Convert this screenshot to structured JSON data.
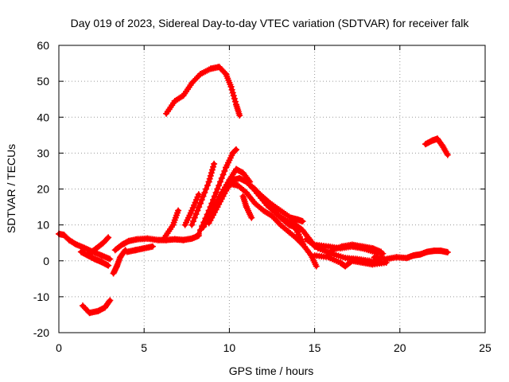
{
  "chart_data": {
    "type": "scatter",
    "title": "Day 019 of 2023, Sidereal Day-to-day VTEC variation (SDTVAR) for receiver falk",
    "xlabel": "GPS time / hours",
    "ylabel": "SDTVAR / TECUs",
    "xlim": [
      0,
      25
    ],
    "ylim": [
      -20,
      60
    ],
    "xticks": [
      0,
      5,
      10,
      15,
      20,
      25
    ],
    "yticks": [
      -20,
      -10,
      0,
      10,
      20,
      30,
      40,
      50,
      60
    ],
    "grid": true,
    "marker": "plus",
    "series_color": "#ff0000",
    "tracks": [
      {
        "name": "track-morning-baseline",
        "points": [
          [
            0.0,
            7.5
          ],
          [
            0.3,
            7.2
          ],
          [
            0.6,
            5.8
          ],
          [
            1.0,
            4.6
          ],
          [
            1.5,
            3.6
          ],
          [
            2.0,
            2.5
          ],
          [
            2.5,
            1.5
          ],
          [
            3.0,
            0.5
          ]
        ]
      },
      {
        "name": "track-morning-low",
        "points": [
          [
            1.3,
            2.5
          ],
          [
            1.7,
            1.5
          ],
          [
            2.1,
            0.5
          ],
          [
            2.5,
            -0.3
          ],
          [
            2.9,
            -1.3
          ]
        ]
      },
      {
        "name": "track-morning-rise",
        "points": [
          [
            1.8,
            2.0
          ],
          [
            2.2,
            3.5
          ],
          [
            2.6,
            5.0
          ],
          [
            2.9,
            6.5
          ]
        ]
      },
      {
        "name": "track-negative-low",
        "points": [
          [
            1.4,
            -12.5
          ],
          [
            1.8,
            -14.5
          ],
          [
            2.3,
            -14.0
          ],
          [
            2.7,
            -13.0
          ],
          [
            3.0,
            -11.0
          ]
        ]
      },
      {
        "name": "track-dip",
        "points": [
          [
            3.2,
            -3.5
          ],
          [
            3.4,
            -1.5
          ],
          [
            3.6,
            1.0
          ],
          [
            3.9,
            3.0
          ]
        ]
      },
      {
        "name": "track-mid-a",
        "points": [
          [
            3.3,
            3.0
          ],
          [
            3.7,
            4.5
          ],
          [
            4.1,
            5.5
          ],
          [
            4.6,
            6.0
          ],
          [
            5.2,
            6.2
          ],
          [
            5.8,
            5.8
          ],
          [
            6.3,
            5.8
          ],
          [
            6.8,
            6.0
          ],
          [
            7.3,
            5.8
          ],
          [
            7.8,
            6.2
          ],
          [
            8.2,
            7.0
          ]
        ]
      },
      {
        "name": "track-mid-b",
        "points": [
          [
            4.0,
            2.5
          ],
          [
            4.5,
            3.0
          ],
          [
            5.0,
            3.5
          ],
          [
            5.5,
            4.0
          ]
        ]
      },
      {
        "name": "track-rise-a",
        "points": [
          [
            6.2,
            6.5
          ],
          [
            6.7,
            10.0
          ],
          [
            7.0,
            14.0
          ]
        ]
      },
      {
        "name": "track-rise-b",
        "points": [
          [
            7.4,
            10.0
          ],
          [
            7.8,
            14.0
          ],
          [
            8.2,
            18.5
          ]
        ]
      },
      {
        "name": "track-rise-c",
        "points": [
          [
            7.8,
            10.0
          ],
          [
            8.3,
            16.0
          ],
          [
            8.8,
            22.0
          ],
          [
            9.1,
            27.0
          ]
        ]
      },
      {
        "name": "track-rise-d",
        "points": [
          [
            8.2,
            7.5
          ],
          [
            8.8,
            14.0
          ],
          [
            9.3,
            20.0
          ],
          [
            9.8,
            26.0
          ],
          [
            10.2,
            30.0
          ],
          [
            10.4,
            31.0
          ]
        ]
      },
      {
        "name": "track-rise-e",
        "points": [
          [
            8.5,
            9.5
          ],
          [
            9.0,
            14.0
          ],
          [
            9.5,
            18.5
          ],
          [
            10.0,
            22.5
          ],
          [
            10.4,
            25.5
          ],
          [
            10.8,
            24.5
          ],
          [
            11.2,
            22.0
          ]
        ]
      },
      {
        "name": "track-rise-f",
        "points": [
          [
            8.8,
            10.5
          ],
          [
            9.3,
            15.0
          ],
          [
            9.8,
            19.5
          ],
          [
            10.2,
            22.5
          ],
          [
            10.6,
            23.0
          ],
          [
            11.0,
            22.0
          ],
          [
            11.5,
            20.0
          ],
          [
            12.0,
            17.0
          ],
          [
            12.5,
            14.5
          ],
          [
            13.0,
            12.0
          ],
          [
            13.5,
            10.0
          ],
          [
            14.0,
            9.0
          ]
        ]
      },
      {
        "name": "track-peak-high",
        "points": [
          [
            6.3,
            41.0
          ],
          [
            6.8,
            44.5
          ],
          [
            7.3,
            46.0
          ],
          [
            7.8,
            49.5
          ],
          [
            8.3,
            52.0
          ],
          [
            8.9,
            53.5
          ],
          [
            9.4,
            54.0
          ],
          [
            9.8,
            52.0
          ],
          [
            10.1,
            48.5
          ],
          [
            10.4,
            43.5
          ],
          [
            10.6,
            40.5
          ]
        ]
      },
      {
        "name": "track-decline-a",
        "points": [
          [
            10.0,
            21.5
          ],
          [
            10.5,
            21.0
          ],
          [
            11.0,
            19.0
          ],
          [
            11.5,
            16.0
          ],
          [
            12.0,
            14.0
          ],
          [
            12.5,
            12.5
          ],
          [
            13.0,
            10.0
          ],
          [
            13.5,
            8.0
          ],
          [
            14.0,
            6.0
          ],
          [
            14.3,
            4.5
          ]
        ]
      },
      {
        "name": "track-decline-b",
        "points": [
          [
            10.8,
            18.0
          ],
          [
            11.0,
            15.0
          ],
          [
            11.3,
            12.0
          ]
        ]
      },
      {
        "name": "track-decline-c",
        "points": [
          [
            11.2,
            21.0
          ],
          [
            11.8,
            18.5
          ],
          [
            12.4,
            16.0
          ],
          [
            13.0,
            14.0
          ],
          [
            13.6,
            12.0
          ],
          [
            14.0,
            11.5
          ],
          [
            14.3,
            11.0
          ]
        ]
      },
      {
        "name": "track-decline-d",
        "points": [
          [
            11.5,
            19.5
          ],
          [
            12.2,
            15.5
          ],
          [
            12.8,
            13.0
          ],
          [
            13.4,
            11.0
          ],
          [
            13.9,
            10.0
          ],
          [
            14.3,
            8.5
          ],
          [
            14.7,
            6.0
          ],
          [
            15.0,
            4.0
          ]
        ]
      },
      {
        "name": "track-decline-e",
        "points": [
          [
            13.7,
            11.0
          ],
          [
            14.0,
            8.0
          ],
          [
            14.4,
            4.0
          ],
          [
            14.8,
            1.5
          ],
          [
            15.1,
            -1.5
          ]
        ]
      },
      {
        "name": "track-afternoon-a",
        "points": [
          [
            14.5,
            6.0
          ],
          [
            15.2,
            3.5
          ],
          [
            16.0,
            2.0
          ],
          [
            16.8,
            0.8
          ],
          [
            17.5,
            0.5
          ],
          [
            18.2,
            0.0
          ],
          [
            18.9,
            -0.5
          ]
        ]
      },
      {
        "name": "track-afternoon-b",
        "points": [
          [
            15.0,
            4.5
          ],
          [
            15.8,
            4.0
          ],
          [
            16.5,
            3.5
          ],
          [
            17.2,
            4.0
          ],
          [
            17.8,
            3.5
          ],
          [
            18.5,
            2.5
          ],
          [
            19.0,
            2.0
          ]
        ]
      },
      {
        "name": "track-afternoon-c",
        "points": [
          [
            15.0,
            1.5
          ],
          [
            15.8,
            1.0
          ],
          [
            16.5,
            -0.5
          ],
          [
            16.8,
            -1.5
          ],
          [
            17.2,
            0.0
          ],
          [
            17.8,
            -0.5
          ],
          [
            18.4,
            -1.0
          ],
          [
            19.2,
            -0.5
          ]
        ]
      },
      {
        "name": "track-afternoon-d",
        "points": [
          [
            16.0,
            3.0
          ],
          [
            16.6,
            4.0
          ],
          [
            17.2,
            4.5
          ],
          [
            17.8,
            4.0
          ],
          [
            18.4,
            3.5
          ],
          [
            18.9,
            2.5
          ]
        ]
      },
      {
        "name": "track-evening",
        "points": [
          [
            18.5,
            1.0
          ],
          [
            19.2,
            0.5
          ],
          [
            19.8,
            1.0
          ],
          [
            20.4,
            0.8
          ],
          [
            20.8,
            1.5
          ],
          [
            21.2,
            1.8
          ],
          [
            21.6,
            2.5
          ],
          [
            22.0,
            2.8
          ],
          [
            22.4,
            2.8
          ],
          [
            22.8,
            2.4
          ]
        ]
      },
      {
        "name": "track-evening-high",
        "points": [
          [
            21.5,
            32.5
          ],
          [
            21.9,
            33.5
          ],
          [
            22.2,
            34.0
          ],
          [
            22.5,
            32.0
          ],
          [
            22.8,
            29.5
          ]
        ]
      }
    ]
  }
}
